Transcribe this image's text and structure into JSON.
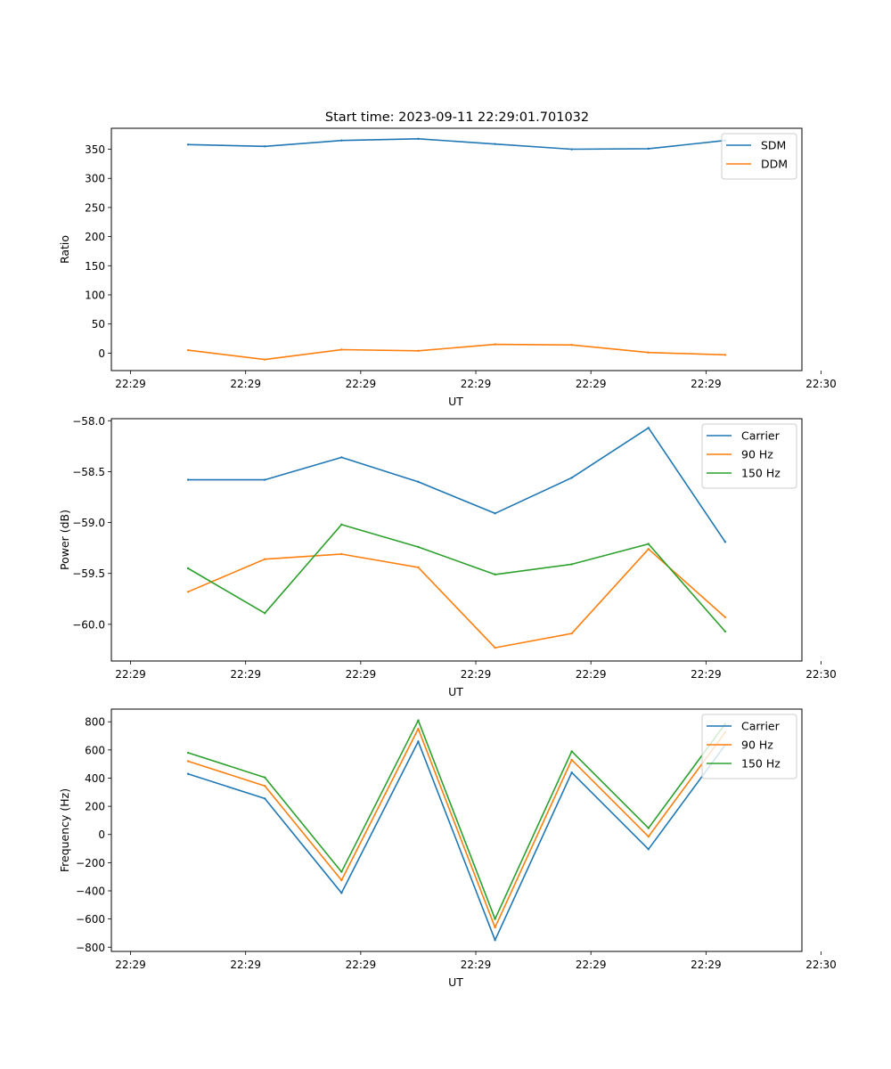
{
  "figure_title": "Start time: 2023-09-11 22:29:01.701032",
  "colors": {
    "blue": "#1f77b4",
    "orange": "#ff7f0e",
    "green": "#2ca02c"
  },
  "chart_data": [
    {
      "type": "line",
      "title": "",
      "xlabel": "UT",
      "ylabel": "Ratio",
      "xlim": [
        -0.5,
        8.5
      ],
      "ylim": [
        -30,
        386
      ],
      "xticks": [
        -0.25,
        1.25,
        2.75,
        4.25,
        5.75,
        7.25,
        8.75
      ],
      "xtick_labels": [
        "22:29",
        "22:29",
        "22:29",
        "22:29",
        "22:29",
        "22:29",
        "22:30"
      ],
      "yticks": [
        0,
        50,
        100,
        150,
        200,
        250,
        300,
        350
      ],
      "ytick_labels": [
        "0",
        "50",
        "100",
        "150",
        "200",
        "250",
        "300",
        "350"
      ],
      "legend": "upper right",
      "x": [
        0.5,
        1.5,
        2.5,
        3.5,
        4.5,
        5.5,
        6.5,
        7.5
      ],
      "series": [
        {
          "name": "SDM",
          "color": "#1f77b4",
          "values": [
            358,
            355,
            365,
            368,
            359,
            350,
            351,
            365
          ]
        },
        {
          "name": "DDM",
          "color": "#ff7f0e",
          "values": [
            5,
            -11,
            6,
            4,
            15,
            14,
            1,
            -3
          ]
        }
      ]
    },
    {
      "type": "line",
      "title": "",
      "xlabel": "UT",
      "ylabel": "Power (dB)",
      "xlim": [
        -0.5,
        8.5
      ],
      "ylim": [
        -60.36,
        -57.98
      ],
      "xticks": [
        -0.25,
        1.25,
        2.75,
        4.25,
        5.75,
        7.25,
        8.75
      ],
      "xtick_labels": [
        "22:29",
        "22:29",
        "22:29",
        "22:29",
        "22:29",
        "22:29",
        "22:30"
      ],
      "yticks": [
        -60.0,
        -59.5,
        -59.0,
        -58.5,
        -58.0
      ],
      "ytick_labels": [
        "−60.0",
        "−59.5",
        "−59.0",
        "−58.5",
        "−58.0"
      ],
      "legend": "upper right",
      "x": [
        0.5,
        1.5,
        2.5,
        3.5,
        4.5,
        5.5,
        6.5,
        7.5
      ],
      "series": [
        {
          "name": "Carrier",
          "color": "#1f77b4",
          "values": [
            -58.58,
            -58.58,
            -58.36,
            -58.6,
            -58.91,
            -58.56,
            -58.07,
            -59.19
          ]
        },
        {
          "name": "90 Hz",
          "color": "#ff7f0e",
          "values": [
            -59.68,
            -59.36,
            -59.31,
            -59.44,
            -60.23,
            -60.09,
            -59.26,
            -59.93
          ]
        },
        {
          "name": "150 Hz",
          "color": "#2ca02c",
          "values": [
            -59.45,
            -59.89,
            -59.02,
            -59.24,
            -59.51,
            -59.41,
            -59.21,
            -60.07
          ]
        }
      ]
    },
    {
      "type": "line",
      "title": "",
      "xlabel": "UT",
      "ylabel": "Frequency (Hz)",
      "xlim": [
        -0.5,
        8.5
      ],
      "ylim": [
        -830,
        890
      ],
      "xticks": [
        -0.25,
        1.25,
        2.75,
        4.25,
        5.75,
        7.25,
        8.75
      ],
      "xtick_labels": [
        "22:29",
        "22:29",
        "22:29",
        "22:29",
        "22:29",
        "22:29",
        "22:30"
      ],
      "yticks": [
        -800,
        -600,
        -400,
        -200,
        0,
        200,
        400,
        600,
        800
      ],
      "ytick_labels": [
        "−800",
        "−600",
        "−400",
        "−200",
        "0",
        "200",
        "400",
        "600",
        "800"
      ],
      "legend": "upper right",
      "x": [
        0.5,
        1.5,
        2.5,
        3.5,
        4.5,
        5.5,
        6.5,
        7.5
      ],
      "series": [
        {
          "name": "Carrier",
          "color": "#1f77b4",
          "values": [
            430,
            255,
            -415,
            660,
            -750,
            440,
            -105,
            635
          ]
        },
        {
          "name": "90 Hz",
          "color": "#ff7f0e",
          "values": [
            520,
            345,
            -325,
            750,
            -660,
            530,
            -15,
            725
          ]
        },
        {
          "name": "150 Hz",
          "color": "#2ca02c",
          "values": [
            580,
            405,
            -265,
            810,
            -600,
            590,
            45,
            785
          ]
        }
      ]
    }
  ]
}
